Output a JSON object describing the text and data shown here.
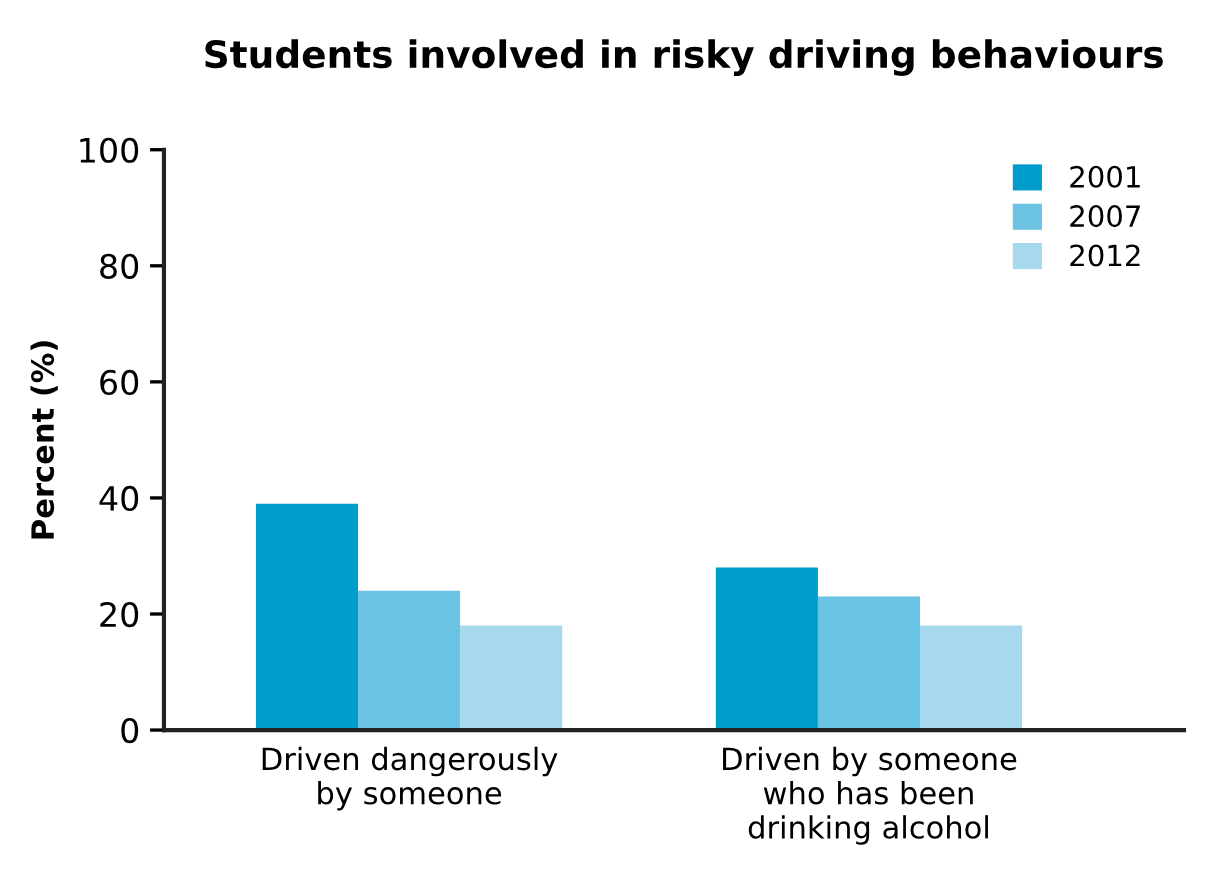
{
  "chart_data": {
    "type": "bar",
    "title": "Students involved in risky driving behaviours",
    "ylabel": "Percent (%)",
    "categories": [
      "Driven dangerously\nby someone",
      "Driven by someone\nwho has been\ndrinking alcohol"
    ],
    "series": [
      {
        "name": "2001",
        "color": "#009ccc",
        "values": [
          39,
          28
        ]
      },
      {
        "name": "2007",
        "color": "#6ac3e3",
        "values": [
          24,
          23
        ]
      },
      {
        "name": "2012",
        "color": "#a6d9ed",
        "values": [
          18,
          18
        ]
      }
    ],
    "ylim": [
      0,
      100
    ],
    "yticks": [
      0,
      20,
      40,
      60,
      80,
      100
    ],
    "grid": false,
    "legend": "top right"
  }
}
